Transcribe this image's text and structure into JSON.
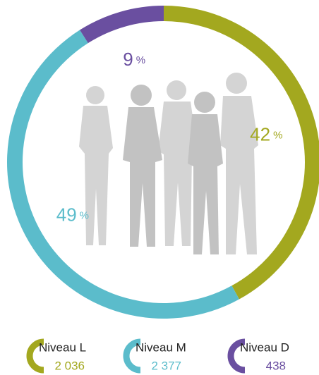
{
  "chart_data": {
    "type": "donut",
    "categories": [
      "Niveau L",
      "Niveau M",
      "Niveau D"
    ],
    "values": [
      42,
      49,
      9
    ],
    "unit": "%",
    "colors": [
      "#a3a81f",
      "#5bbccb",
      "#6a4fa0"
    ],
    "counts": [
      2036,
      2377,
      438
    ],
    "count_labels": [
      "2 036",
      "2 377",
      "438"
    ]
  }
}
